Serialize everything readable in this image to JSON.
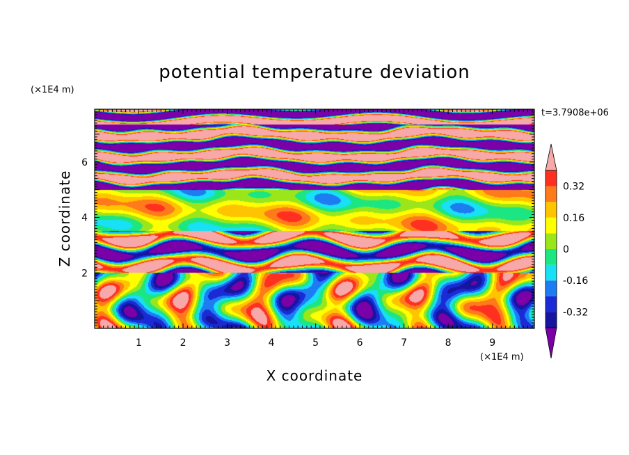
{
  "chart_data": {
    "type": "heatmap",
    "title": "potential temperature deviation",
    "xlabel": "X coordinate",
    "ylabel": "Z coordinate",
    "x_unit": "(×1E4 m)",
    "y_unit": "(×1E4 m)",
    "time_label": "t=3.7908e+06",
    "xlim": [
      0,
      9.95
    ],
    "ylim": [
      0,
      7.9
    ],
    "x_ticks": [
      "1",
      "2",
      "3",
      "4",
      "5",
      "6",
      "7",
      "8",
      "9"
    ],
    "y_ticks": [
      "2",
      "4",
      "6"
    ],
    "colorbar": {
      "levels": [
        -0.4,
        -0.32,
        -0.24,
        -0.16,
        -0.08,
        0,
        0.08,
        0.16,
        0.24,
        0.32,
        0.4
      ],
      "colors": [
        "#7b00a8",
        "#1515a0",
        "#1a2bd6",
        "#1e7cf2",
        "#18e0f5",
        "#1ce682",
        "#9be61a",
        "#ffff00",
        "#ffc400",
        "#ff7a1a",
        "#ff3020",
        "#f7a8a8"
      ],
      "tick_labels": [
        "0.32",
        "0.16",
        "0",
        "-0.16",
        "-0.32"
      ],
      "extend": "both"
    },
    "field_description_bands": [
      {
        "z_range": [
          7.3,
          7.9
        ],
        "dominant": "negative (< -0.4) and positive (> 0.4) alternating"
      },
      {
        "z_range": [
          5.0,
          7.3
        ],
        "dominant": "strong alternating layers"
      },
      {
        "z_range": [
          3.5,
          5.0
        ],
        "dominant": "near zero, -0.1 to 0.2"
      },
      {
        "z_range": [
          2.0,
          3.5
        ],
        "dominant": "mixed -0.4 to 0.4"
      },
      {
        "z_range": [
          0.0,
          2.0
        ],
        "dominant": "turbulent, -0.3 to 0.35"
      }
    ]
  }
}
